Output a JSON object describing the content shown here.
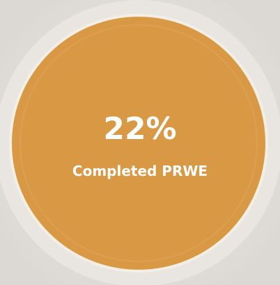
{
  "metric": {
    "value": "22%",
    "label": "Completed PRWE"
  }
}
